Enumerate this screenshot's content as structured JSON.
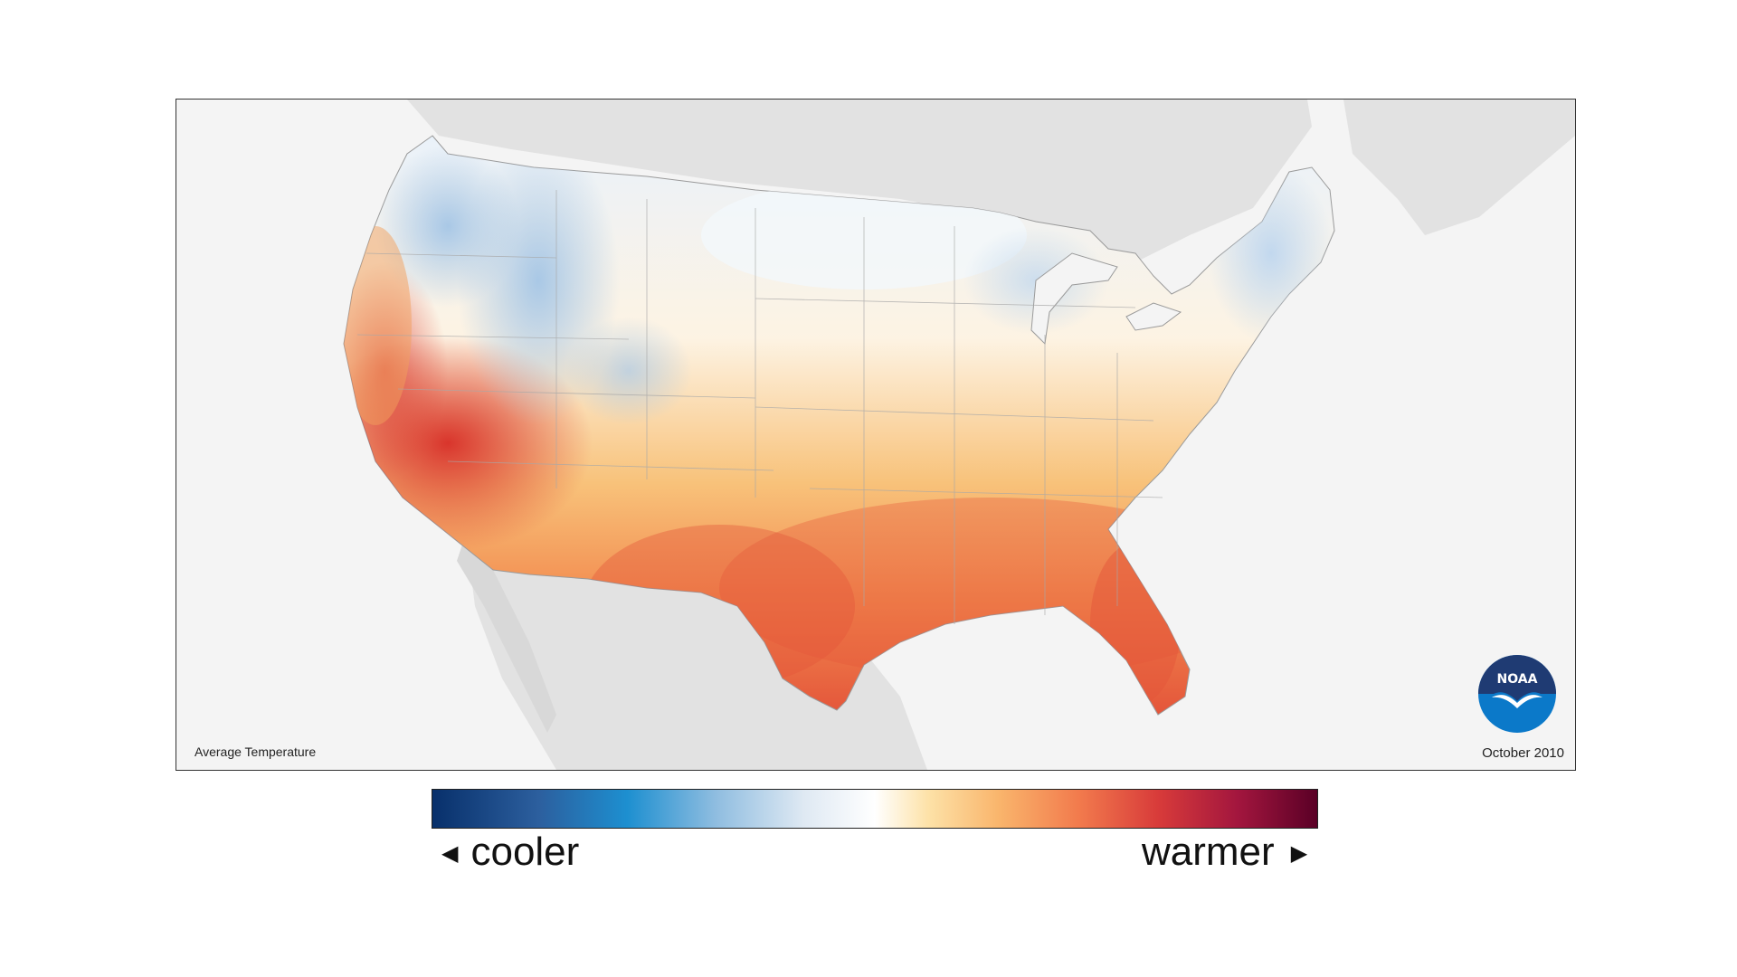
{
  "map": {
    "caption": "Average Temperature",
    "date": "October 2010",
    "logo_text": "NOAA",
    "colors": {
      "background": "#f4f4f4",
      "land_other": "#e2e2e2",
      "cool": "#c7dcef",
      "neutral": "#fdf5ea",
      "warm": "#f6a65c",
      "hot": "#e24a33",
      "noaa_navy": "#1f3b73",
      "noaa_blue": "#0b79c9"
    }
  },
  "legend": {
    "cooler_label": "cooler",
    "warmer_label": "warmer",
    "left_arrow": "◀",
    "right_arrow": "▶"
  }
}
